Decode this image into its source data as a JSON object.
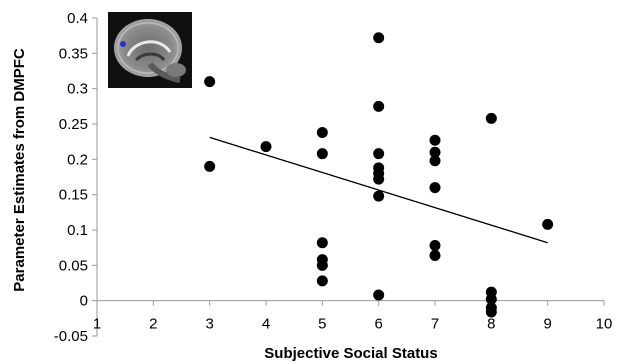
{
  "chart_data": {
    "type": "scatter",
    "title": "",
    "xlabel": "Subjective Social Status",
    "ylabel": "Parameter Estimates from DMPFC",
    "xlim": [
      1,
      10
    ],
    "ylim": [
      -0.05,
      0.4
    ],
    "x_ticks": [
      "1",
      "2",
      "3",
      "4",
      "5",
      "6",
      "7",
      "8",
      "9",
      "10"
    ],
    "y_ticks": [
      "-0.05",
      "0",
      "0.05",
      "0.1",
      "0.15",
      "0.2",
      "0.25",
      "0.3",
      "0.35",
      "0.4"
    ],
    "grid": false,
    "legend": "none",
    "marker_color": "#000000",
    "points": [
      {
        "x": 3,
        "y": 0.31
      },
      {
        "x": 3,
        "y": 0.19
      },
      {
        "x": 4,
        "y": 0.218
      },
      {
        "x": 5,
        "y": 0.238
      },
      {
        "x": 5,
        "y": 0.208
      },
      {
        "x": 5,
        "y": 0.082
      },
      {
        "x": 5,
        "y": 0.058
      },
      {
        "x": 5,
        "y": 0.05
      },
      {
        "x": 5,
        "y": 0.028
      },
      {
        "x": 6,
        "y": 0.372
      },
      {
        "x": 6,
        "y": 0.275
      },
      {
        "x": 6,
        "y": 0.208
      },
      {
        "x": 6,
        "y": 0.188
      },
      {
        "x": 6,
        "y": 0.18
      },
      {
        "x": 6,
        "y": 0.172
      },
      {
        "x": 6,
        "y": 0.148
      },
      {
        "x": 6,
        "y": 0.008
      },
      {
        "x": 7,
        "y": 0.227
      },
      {
        "x": 7,
        "y": 0.21
      },
      {
        "x": 7,
        "y": 0.198
      },
      {
        "x": 7,
        "y": 0.16
      },
      {
        "x": 7,
        "y": 0.078
      },
      {
        "x": 7,
        "y": 0.064
      },
      {
        "x": 8,
        "y": 0.258
      },
      {
        "x": 8,
        "y": 0.012
      },
      {
        "x": 8,
        "y": 0.002
      },
      {
        "x": 8,
        "y": -0.01
      },
      {
        "x": 8,
        "y": -0.016
      },
      {
        "x": 9,
        "y": 0.108
      }
    ],
    "trendline": {
      "x": [
        3,
        9
      ],
      "y": [
        0.231,
        0.082
      ],
      "color": "#000000"
    },
    "inset_image": "brain-sagittal-mri-icon"
  }
}
